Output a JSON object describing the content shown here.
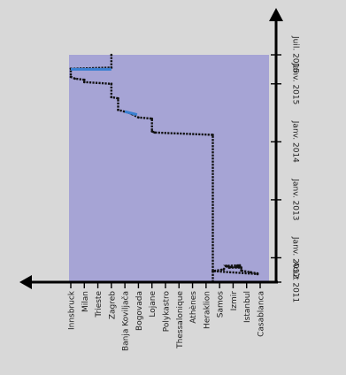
{
  "chart_data": {
    "type": "line",
    "orientation": "rotated",
    "categories": [
      "Innsbruck",
      "Milan",
      "Trieste",
      "Zagreb",
      "Banja Koviljača",
      "Bogovada",
      "Lojane",
      "Polykastro",
      "Thessalonique",
      "Athènes",
      "Heraklion",
      "Samos",
      "Izmir",
      "Istanbul",
      "Casablanca"
    ],
    "time_ticks": [
      {
        "label": "Août 2011",
        "value": 2011.58
      },
      {
        "label": "Janv. 2012",
        "value": 2012.0
      },
      {
        "label": "Janv. 2013",
        "value": 2013.0
      },
      {
        "label": "Janv. 2014",
        "value": 2014.0
      },
      {
        "label": "Janv. 2015",
        "value": 2015.0
      },
      {
        "label": "Juil. 2015",
        "value": 2015.5
      }
    ],
    "time_range": [
      2011.58,
      2015.5
    ],
    "plot_background": "#a6a4d5",
    "colors": {
      "path": "#111111",
      "highlight": "#3a7fd0",
      "axis": "#000000",
      "frame": "#d8d8d8"
    },
    "path": [
      [
        10.5,
        2011.58
      ],
      [
        10.5,
        2011.77
      ],
      [
        11.3,
        2011.8
      ],
      [
        11.5,
        2011.86
      ],
      [
        11.8,
        2011.84
      ],
      [
        12.3,
        2011.84
      ],
      [
        12.3,
        2011.86
      ],
      [
        12.5,
        2011.85
      ],
      [
        12.5,
        2011.87
      ],
      [
        11.5,
        2011.86
      ],
      [
        11.7,
        2011.83
      ],
      [
        12.6,
        2011.83
      ],
      [
        12.6,
        2011.78
      ],
      [
        13.3,
        2011.75
      ],
      [
        13.8,
        2011.73
      ],
      [
        13.8,
        2011.72
      ],
      [
        13.8,
        2011.72
      ],
      [
        10.5,
        2011.77
      ],
      [
        10.5,
        2014.12
      ],
      [
        6.2,
        2014.16
      ],
      [
        6.0,
        2014.18
      ],
      [
        6.0,
        2014.4
      ],
      [
        5.0,
        2014.42
      ],
      [
        4.5,
        2014.48
      ],
      [
        4.3,
        2014.5
      ],
      [
        3.5,
        2014.55
      ],
      [
        3.5,
        2014.75
      ],
      [
        3.0,
        2014.77
      ],
      [
        3.0,
        2015.0
      ],
      [
        1.0,
        2015.03
      ],
      [
        1.0,
        2015.07
      ],
      [
        0.3,
        2015.09
      ],
      [
        0.0,
        2015.12
      ],
      [
        0.0,
        2015.26
      ],
      [
        3.0,
        2015.28
      ],
      [
        3.0,
        2015.5
      ]
    ],
    "highlights": [
      [
        [
          0.0,
          2015.25
        ],
        [
          3.0,
          2015.25
        ]
      ],
      [
        [
          4.0,
          2014.52
        ],
        [
          4.9,
          2014.47
        ]
      ]
    ]
  }
}
